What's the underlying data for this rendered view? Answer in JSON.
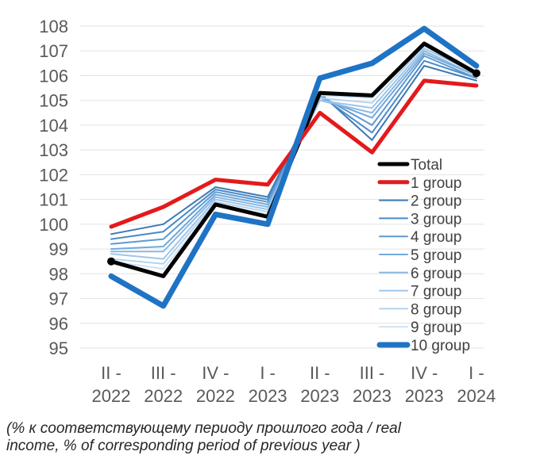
{
  "caption_line1": "(% к соответствующему периоду прошлого года / real",
  "caption_line2": "income,  % of corresponding period of previous year )",
  "chart_data": {
    "type": "line",
    "x_labels": [
      [
        "II -",
        "2022"
      ],
      [
        "III -",
        "2022"
      ],
      [
        "IV -",
        "2022"
      ],
      [
        "I -",
        "2023"
      ],
      [
        "II -",
        "2023"
      ],
      [
        "III -",
        "2023"
      ],
      [
        "IV -",
        "2023"
      ],
      [
        "I -",
        "2024"
      ]
    ],
    "ylim": [
      95,
      108
    ],
    "y_ticks": [
      95,
      96,
      97,
      98,
      99,
      100,
      101,
      102,
      103,
      104,
      105,
      106,
      107,
      108
    ],
    "grid": "horizontal",
    "legend_position": "right",
    "series": [
      {
        "name": "1 group",
        "color": "#e31a1c",
        "width": 5,
        "values": [
          99.9,
          100.7,
          101.8,
          101.6,
          104.5,
          102.9,
          105.8,
          105.6
        ]
      },
      {
        "name": "2 group",
        "color": "#3a7ab7",
        "width": 2,
        "values": [
          99.6,
          100.0,
          101.5,
          101.1,
          105.3,
          103.4,
          106.4,
          105.8
        ]
      },
      {
        "name": "3 group",
        "color": "#4b8ac6",
        "width": 2,
        "values": [
          99.4,
          99.7,
          101.4,
          101.0,
          105.2,
          103.7,
          106.6,
          105.9
        ]
      },
      {
        "name": "4 group",
        "color": "#5d9ad2",
        "width": 2,
        "values": [
          99.2,
          99.4,
          101.3,
          100.9,
          105.2,
          104.0,
          106.8,
          105.9
        ]
      },
      {
        "name": "5 group",
        "color": "#72a9dc",
        "width": 2,
        "values": [
          99.0,
          99.1,
          101.2,
          100.8,
          105.1,
          104.3,
          106.9,
          106.0
        ]
      },
      {
        "name": "6 group",
        "color": "#88b8e3",
        "width": 2,
        "values": [
          98.9,
          98.9,
          101.1,
          100.7,
          105.0,
          104.5,
          107.0,
          106.0
        ]
      },
      {
        "name": "7 group",
        "color": "#9fc6e9",
        "width": 2,
        "values": [
          98.8,
          98.6,
          101.0,
          100.6,
          105.0,
          104.7,
          107.1,
          106.1
        ]
      },
      {
        "name": "8 group",
        "color": "#b5d3ee",
        "width": 2,
        "values": [
          98.6,
          98.4,
          100.9,
          100.5,
          105.1,
          104.9,
          107.2,
          106.1
        ]
      },
      {
        "name": "9 group",
        "color": "#cfe2f5",
        "width": 2,
        "values": [
          98.5,
          98.2,
          100.8,
          100.4,
          105.2,
          105.1,
          107.3,
          106.1
        ]
      },
      {
        "name": "10 group",
        "color": "#1f73c5",
        "width": 7,
        "values": [
          97.9,
          96.7,
          100.4,
          100.0,
          105.9,
          106.5,
          107.9,
          106.4
        ]
      },
      {
        "name": "Total",
        "color": "#000000",
        "width": 5,
        "values": [
          98.5,
          97.9,
          100.8,
          100.3,
          105.3,
          105.2,
          107.3,
          106.1
        ]
      }
    ],
    "legend_order": [
      "Total",
      "1 group",
      "2 group",
      "3 group",
      "4 group",
      "5 group",
      "6 group",
      "7 group",
      "8 group",
      "9 group",
      "10 group"
    ]
  }
}
